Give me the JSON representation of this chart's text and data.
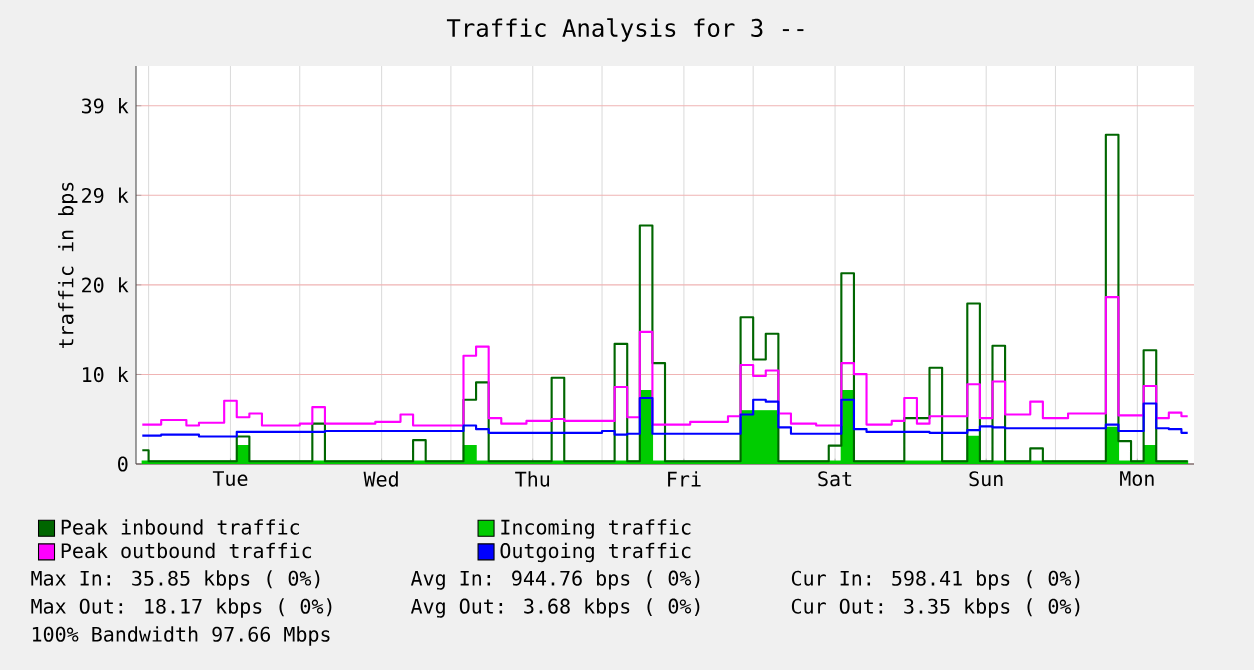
{
  "chart_data": {
    "type": "step",
    "title": "Traffic Analysis for 3 --",
    "ylabel": "traffic in bps",
    "categories": [
      null,
      null,
      null,
      null,
      null,
      null,
      null,
      "Tue",
      null,
      null,
      null,
      null,
      null,
      null,
      null,
      null,
      null,
      null,
      null,
      "Wed",
      null,
      null,
      null,
      null,
      null,
      null,
      null,
      null,
      null,
      null,
      null,
      "Thu",
      null,
      null,
      null,
      null,
      null,
      null,
      null,
      null,
      null,
      null,
      null,
      "Fri",
      null,
      null,
      null,
      null,
      null,
      null,
      null,
      null,
      null,
      null,
      null,
      "Sat",
      null,
      null,
      null,
      null,
      null,
      null,
      null,
      null,
      null,
      null,
      null,
      "Sun",
      null,
      null,
      null,
      null,
      null,
      null,
      null,
      null,
      null,
      null,
      null,
      "Mon",
      null,
      null,
      null,
      null
    ],
    "ylim": [
      0,
      43400
    ],
    "yticks": [
      0,
      {
        "value": 9766,
        "label": "10 k"
      },
      {
        "value": 19531,
        "label": "20 k"
      },
      {
        "value": 29297,
        "label": "29 k"
      },
      {
        "value": 39062,
        "label": "39 k"
      }
    ],
    "grid": true,
    "legend": "bottom",
    "series": [
      {
        "name": "Peak inbound traffic",
        "color": "#006600",
        "values": [
          1500,
          300,
          300,
          300,
          300,
          300,
          300,
          300,
          3000,
          300,
          300,
          300,
          300,
          300,
          4400,
          300,
          300,
          300,
          300,
          300,
          300,
          300,
          2600,
          300,
          300,
          300,
          7000,
          8900,
          300,
          300,
          300,
          300,
          300,
          9400,
          300,
          300,
          300,
          300,
          13100,
          300,
          26000,
          11000,
          300,
          300,
          300,
          300,
          300,
          300,
          16000,
          11400,
          14200,
          300,
          300,
          300,
          300,
          2000,
          20800,
          300,
          300,
          300,
          300,
          5000,
          5000,
          10500,
          300,
          300,
          17500,
          300,
          12900,
          300,
          300,
          1700,
          300,
          300,
          300,
          300,
          300,
          35900,
          2500,
          300,
          12400,
          300,
          300,
          300
        ]
      },
      {
        "name": "Incoming traffic",
        "color": "#00cc00",
        "type": "area",
        "values": [
          300,
          300,
          300,
          300,
          300,
          300,
          300,
          300,
          2000,
          300,
          300,
          300,
          300,
          300,
          300,
          300,
          300,
          300,
          300,
          300,
          300,
          300,
          300,
          300,
          300,
          300,
          2000,
          300,
          300,
          300,
          300,
          300,
          300,
          300,
          300,
          300,
          300,
          300,
          300,
          300,
          8000,
          300,
          300,
          300,
          300,
          300,
          300,
          300,
          5800,
          5800,
          5800,
          300,
          300,
          300,
          300,
          300,
          8000,
          300,
          300,
          300,
          300,
          300,
          300,
          300,
          300,
          300,
          3000,
          300,
          300,
          300,
          300,
          300,
          300,
          300,
          300,
          300,
          300,
          4000,
          300,
          300,
          2000,
          300,
          300,
          300
        ]
      },
      {
        "name": "Peak outbound traffic",
        "color": "#ff00ff",
        "values": [
          4300,
          4300,
          4800,
          4800,
          4200,
          4500,
          4500,
          6900,
          5100,
          5500,
          4200,
          4200,
          4200,
          4400,
          6200,
          4400,
          4400,
          4400,
          4400,
          4600,
          4600,
          5400,
          4200,
          4200,
          4200,
          4200,
          11800,
          12800,
          5000,
          4400,
          4400,
          4700,
          4700,
          4900,
          4700,
          4700,
          4700,
          4700,
          8400,
          5100,
          14400,
          4300,
          4300,
          4300,
          4600,
          4600,
          4600,
          5200,
          10800,
          9600,
          10200,
          5500,
          4400,
          4400,
          4200,
          4200,
          11000,
          9800,
          4300,
          4300,
          4700,
          7200,
          4400,
          5200,
          5200,
          5200,
          8700,
          5000,
          9000,
          5400,
          5400,
          6800,
          5000,
          5000,
          5500,
          5500,
          5500,
          18200,
          5300,
          5300,
          8500,
          5000,
          5600,
          5200
        ]
      },
      {
        "name": "Outgoing traffic",
        "color": "#0000ff",
        "values": [
          3100,
          3100,
          3200,
          3200,
          3200,
          3000,
          3000,
          3000,
          3500,
          3500,
          3500,
          3500,
          3500,
          3500,
          3500,
          3600,
          3600,
          3600,
          3600,
          3600,
          3600,
          3600,
          3600,
          3600,
          3600,
          3600,
          4200,
          3800,
          3400,
          3400,
          3400,
          3400,
          3400,
          3400,
          3400,
          3400,
          3400,
          3600,
          3200,
          3300,
          7200,
          3300,
          3300,
          3300,
          3300,
          3300,
          3300,
          3300,
          5400,
          7000,
          6800,
          4000,
          3300,
          3300,
          3300,
          3300,
          7000,
          3800,
          3500,
          3500,
          3500,
          3500,
          3500,
          3400,
          3400,
          3400,
          3700,
          4100,
          4000,
          3900,
          3900,
          3900,
          3900,
          3900,
          3900,
          3900,
          3900,
          4300,
          3600,
          3600,
          6600,
          3900,
          3800,
          3400
        ]
      }
    ],
    "annotations": [
      "Max In:  35.85 kbps ( 0%)",
      "Avg In: 944.76  bps ( 0%)",
      "Cur In: 598.41  bps ( 0%)",
      "Max Out: 18.17 kbps ( 0%)",
      "Avg Out:  3.68 kbps ( 0%)",
      "Cur Out:  3.35 kbps ( 0%)",
      "100% Bandwidth 97.66 Mbps"
    ]
  }
}
